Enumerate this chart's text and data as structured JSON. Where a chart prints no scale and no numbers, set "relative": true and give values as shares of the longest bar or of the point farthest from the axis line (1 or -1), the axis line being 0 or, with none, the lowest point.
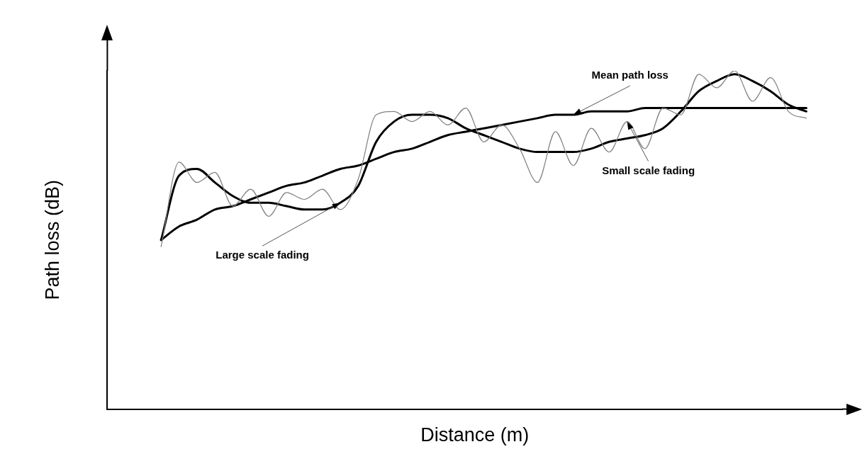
{
  "chart_data": {
    "type": "line",
    "relative": true,
    "xlabel": "Distance (m)",
    "ylabel": "Path loss (dB)",
    "grid": false,
    "legend": false,
    "tick_labels": false,
    "marker": "none",
    "line_style": "solid",
    "categories": [
      null,
      null,
      null,
      null,
      null,
      null,
      null,
      null,
      null,
      null,
      null,
      null,
      null,
      null,
      null,
      null,
      null,
      null,
      null,
      null,
      null,
      null,
      null,
      null,
      null,
      null,
      null,
      null,
      null,
      null,
      null,
      null,
      null,
      null,
      null,
      null,
      null,
      null,
      null,
      null,
      null,
      null
    ],
    "series": [
      {
        "name": "Small scale fading",
        "color": "#808080",
        "values": [
          null,
          null,
          null,
          0.48,
          0.73,
          0.67,
          0.7,
          0.6,
          0.65,
          0.57,
          0.64,
          0.62,
          0.65,
          0.59,
          0.68,
          0.87,
          0.88,
          0.85,
          0.88,
          0.84,
          0.89,
          0.79,
          0.84,
          0.77,
          0.67,
          0.82,
          0.72,
          0.83,
          0.76,
          0.85,
          0.77,
          0.89,
          0.87,
          0.99,
          0.95,
          1.0,
          0.91,
          0.98,
          0.88,
          0.86,
          null,
          null
        ]
      },
      {
        "name": "Large scale fading",
        "color": "#000000",
        "values": [
          null,
          null,
          null,
          0.5,
          0.69,
          0.71,
          0.67,
          0.63,
          0.61,
          0.61,
          0.6,
          0.59,
          0.59,
          0.61,
          0.66,
          0.79,
          0.85,
          0.87,
          0.87,
          0.86,
          0.83,
          0.81,
          0.79,
          0.77,
          0.76,
          0.76,
          0.76,
          0.77,
          0.79,
          0.8,
          0.81,
          0.83,
          0.88,
          0.94,
          0.97,
          0.99,
          0.97,
          0.94,
          0.9,
          0.88,
          null,
          null
        ]
      },
      {
        "name": "Mean path loss",
        "color": "#000000",
        "values": [
          null,
          null,
          null,
          0.5,
          0.54,
          0.56,
          0.59,
          0.6,
          0.62,
          0.64,
          0.66,
          0.67,
          0.69,
          0.71,
          0.72,
          0.74,
          0.76,
          0.77,
          0.79,
          0.81,
          0.82,
          0.83,
          0.84,
          0.85,
          0.86,
          0.87,
          0.87,
          0.88,
          0.88,
          0.88,
          0.89,
          0.89,
          0.89,
          0.89,
          0.89,
          0.89,
          0.89,
          0.89,
          0.89,
          0.89,
          null,
          null
        ]
      }
    ]
  }
}
